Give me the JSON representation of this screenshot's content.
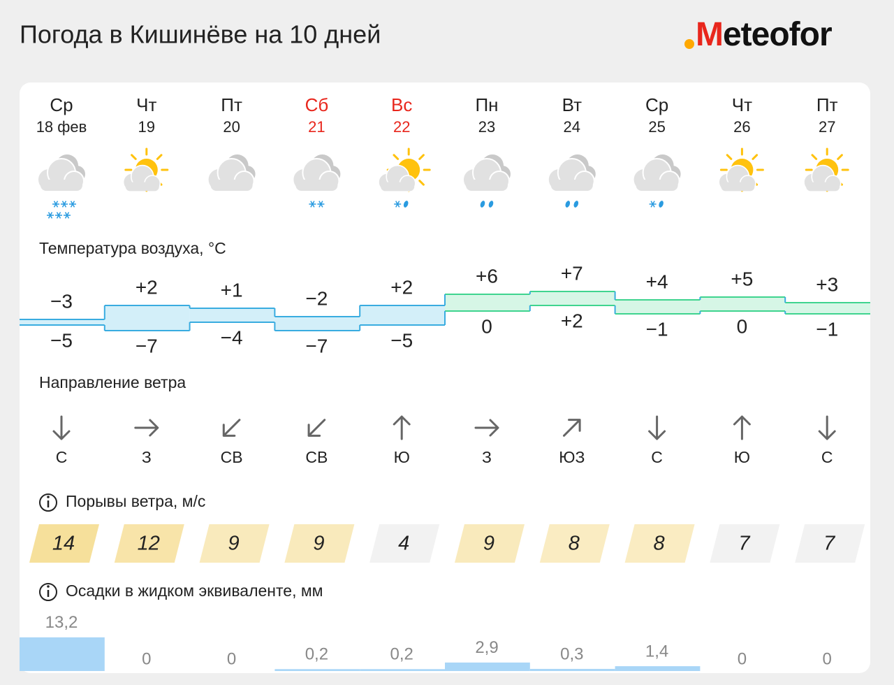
{
  "header": {
    "title": "Погода в Кишинёве на 10 дней",
    "logo": "Meteofor"
  },
  "days": [
    {
      "weekday": "Ср",
      "date": "18 фев",
      "color": "#222222"
    },
    {
      "weekday": "Чт",
      "date": "19",
      "color": "#222222"
    },
    {
      "weekday": "Пт",
      "date": "20",
      "color": "#222222"
    },
    {
      "weekday": "Сб",
      "date": "21",
      "color": "#e8261c"
    },
    {
      "weekday": "Вс",
      "date": "22",
      "color": "#e8261c"
    },
    {
      "weekday": "Пн",
      "date": "23",
      "color": "#222222"
    },
    {
      "weekday": "Вт",
      "date": "24",
      "color": "#222222"
    },
    {
      "weekday": "Ср",
      "date": "25",
      "color": "#222222"
    },
    {
      "weekday": "Чт",
      "date": "26",
      "color": "#222222"
    },
    {
      "weekday": "Пт",
      "date": "27",
      "color": "#222222"
    }
  ],
  "temperature": {
    "title": "Температура воздуха, °C",
    "max": [
      {
        "value": -3,
        "label": "−3"
      },
      {
        "value": 2,
        "label": "+2"
      },
      {
        "value": 1,
        "label": "+1"
      },
      {
        "value": -2,
        "label": "−2"
      },
      {
        "value": 2,
        "label": "+2"
      },
      {
        "value": 6,
        "label": "+6"
      },
      {
        "value": 7,
        "label": "+7"
      },
      {
        "value": 4,
        "label": "+4"
      },
      {
        "value": 5,
        "label": "+5"
      },
      {
        "value": 3,
        "label": "+3"
      }
    ],
    "min": [
      {
        "value": -5,
        "label": "−5"
      },
      {
        "value": -7,
        "label": "−7"
      },
      {
        "value": -4,
        "label": "−4"
      },
      {
        "value": -7,
        "label": "−7"
      },
      {
        "value": -5,
        "label": "−5"
      },
      0,
      {
        "value": 2,
        "label": "+2"
      },
      {
        "value": -1,
        "label": "−1"
      },
      0,
      {
        "value": -1,
        "label": "−1"
      }
    ]
  },
  "wind_direction": {
    "title": "Направление ветра",
    "values": [
      "С",
      "З",
      "СВ",
      "СВ",
      "Ю",
      "З",
      "ЮЗ",
      "С",
      "Ю",
      "С"
    ]
  },
  "wind_gusts": {
    "title": "Порывы ветра, м/с",
    "values": [
      14,
      12,
      9,
      9,
      4,
      9,
      8,
      8,
      7,
      7
    ]
  },
  "precipitation": {
    "title": "Осадки в жидком эквиваленте, мм",
    "values": [
      13.2,
      0,
      0,
      0.2,
      0.2,
      2.9,
      0.3,
      1.4,
      0,
      0
    ],
    "value_labels": [
      "13,2",
      "0",
      "0",
      "0,2",
      "0,2",
      "2,9",
      "0,3",
      "1,4",
      "0",
      "0"
    ]
  }
}
